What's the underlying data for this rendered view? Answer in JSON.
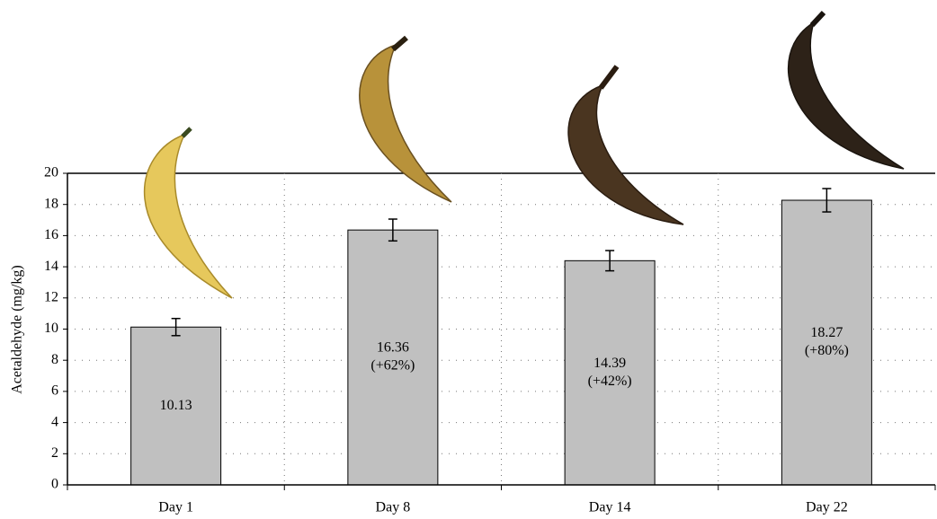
{
  "chart_data": {
    "type": "bar",
    "y_label": "Acetaldehyde (mg/kg)",
    "categories": [
      "Day 1",
      "Day 8",
      "Day 14",
      "Day 22"
    ],
    "values": [
      10.13,
      16.36,
      14.39,
      18.27
    ],
    "errors": [
      0.55,
      0.7,
      0.65,
      0.75
    ],
    "change_labels": [
      null,
      "(+62%)",
      "(+42%)",
      "(+80%)"
    ],
    "color": "#c0c0c0",
    "ylim": [
      0,
      20
    ],
    "yticks": [
      0,
      2,
      4,
      6,
      8,
      10,
      12,
      14,
      16,
      18,
      20
    ],
    "grid": true
  }
}
